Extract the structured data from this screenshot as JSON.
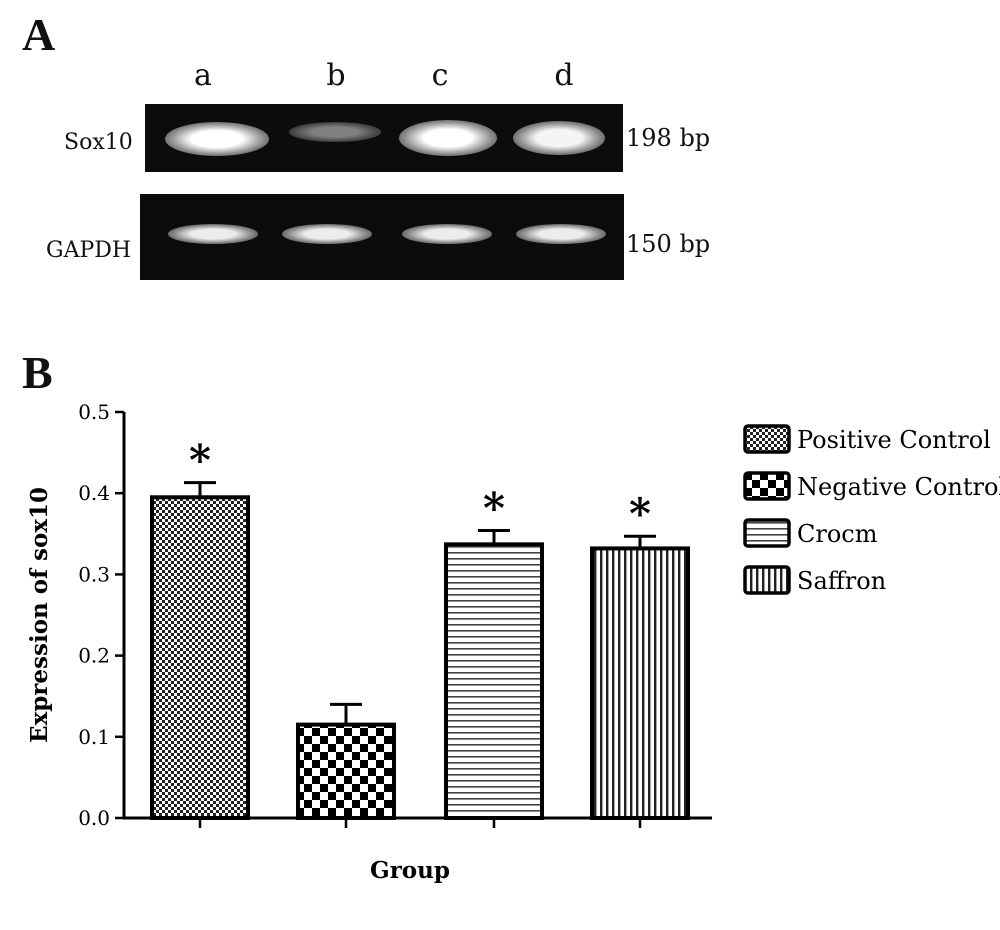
{
  "panels": {
    "a": "A",
    "b": "B"
  },
  "gel": {
    "lanes": [
      "a",
      "b",
      "c",
      "d"
    ],
    "rows": [
      {
        "name": "Sox10",
        "size": "198 bp",
        "band_intensity": [
          1.0,
          0.35,
          1.0,
          0.95
        ]
      },
      {
        "name": "GAPDH",
        "size": "150 bp",
        "band_intensity": [
          0.9,
          0.9,
          0.9,
          0.9
        ]
      }
    ]
  },
  "chart_data": {
    "type": "bar",
    "categories": [
      "Positive Control",
      "Negative Control",
      "Crocm",
      "Saffron"
    ],
    "values": [
      0.395,
      0.115,
      0.337,
      0.332
    ],
    "errors": [
      0.018,
      0.025,
      0.017,
      0.015
    ],
    "significance": [
      "*",
      "",
      "*",
      "*"
    ],
    "xlabel": "Group",
    "ylabel": "Expression of sox10",
    "ylim": [
      0.0,
      0.5
    ],
    "yticks": [
      "0.0",
      "0.1",
      "0.2",
      "0.3",
      "0.4",
      "0.5"
    ],
    "legend": {
      "position": "right",
      "entries": [
        "Positive Control",
        "Negative Control",
        "Crocm",
        "Saffron"
      ]
    },
    "patterns": [
      "fine-checker",
      "coarse-checker",
      "horizontal-lines",
      "vertical-lines"
    ]
  }
}
